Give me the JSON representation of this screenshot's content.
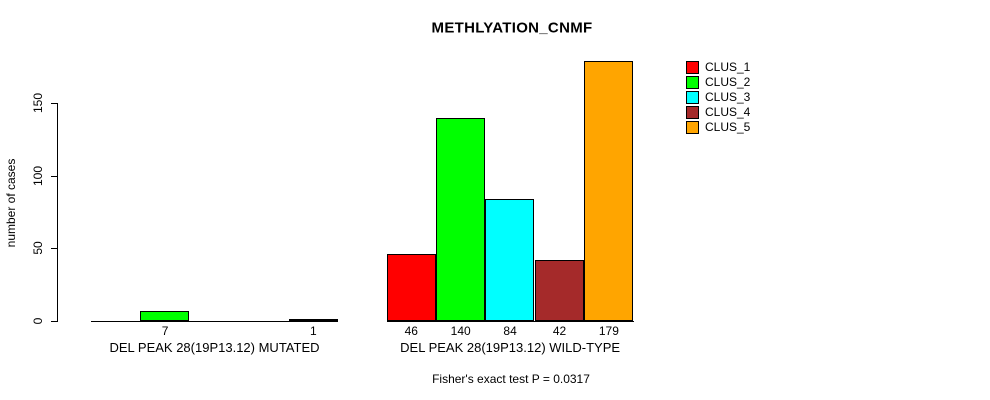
{
  "chart_data": {
    "type": "bar",
    "title": "METHLYATION_CNMF",
    "ylabel": "number of cases",
    "xlabel": "",
    "ylim": [
      0,
      179
    ],
    "yticks": [
      0,
      50,
      100,
      150
    ],
    "grid": false,
    "legend_position": "right",
    "legend": [
      "CLUS_1",
      "CLUS_2",
      "CLUS_3",
      "CLUS_4",
      "CLUS_5"
    ],
    "series_colors": [
      "#FF0000",
      "#00FF00",
      "#00FFFF",
      "#A52A2A",
      "#FFA500"
    ],
    "bar_outline_color": "#000000",
    "groups": [
      {
        "label": "DEL PEAK 28(19P13.12) MUTATED",
        "series": [
          "CLUS_1",
          "CLUS_2",
          "CLUS_3",
          "CLUS_4",
          "CLUS_5"
        ],
        "values": [
          0,
          7,
          0,
          0,
          1
        ],
        "visible_value_labels": [
          "7",
          "1"
        ]
      },
      {
        "label": "DEL PEAK 28(19P13.12) WILD-TYPE",
        "series": [
          "CLUS_1",
          "CLUS_2",
          "CLUS_3",
          "CLUS_4",
          "CLUS_5"
        ],
        "values": [
          46,
          140,
          84,
          42,
          179
        ],
        "visible_value_labels": [
          "46",
          "140",
          "84",
          "42",
          "179"
        ]
      }
    ],
    "annotation": "Fisher's exact test P = 0.0317"
  }
}
